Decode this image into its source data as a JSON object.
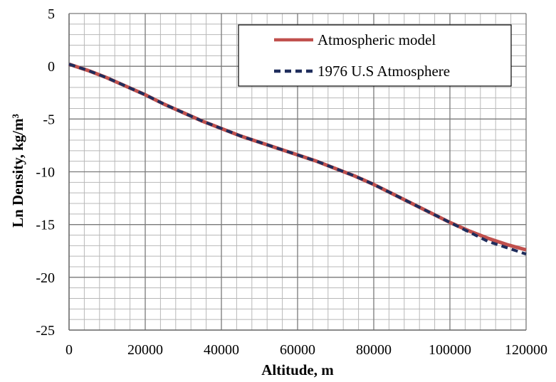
{
  "chart_data": {
    "type": "line",
    "title": "",
    "xlabel": "Altitude, m",
    "ylabel": "Ln Density, kg/m³",
    "xlim": [
      0,
      120000
    ],
    "ylim": [
      -25,
      5
    ],
    "x_major_step": 20000,
    "x_minor_step": 4000,
    "y_major_step": 5,
    "y_minor_step": 1,
    "x_tick_labels": [
      "0",
      "20000",
      "40000",
      "60000",
      "80000",
      "100000",
      "120000"
    ],
    "y_tick_labels": [
      "5",
      "0",
      "-5",
      "-10",
      "-15",
      "-20",
      "-25"
    ],
    "grid": true,
    "legend_position": "top-right",
    "series": [
      {
        "name": "Atmospheric model",
        "color": "#c0504d",
        "style": "solid",
        "x": [
          0,
          5000,
          10000,
          15000,
          20000,
          25000,
          30000,
          35000,
          40000,
          45000,
          50000,
          55000,
          60000,
          65000,
          70000,
          75000,
          80000,
          85000,
          90000,
          95000,
          100000,
          105000,
          110000,
          115000,
          120000
        ],
        "y": [
          0.2,
          -0.4,
          -1.1,
          -1.9,
          -2.7,
          -3.6,
          -4.4,
          -5.2,
          -5.9,
          -6.6,
          -7.2,
          -7.8,
          -8.4,
          -9.0,
          -9.7,
          -10.4,
          -11.2,
          -12.1,
          -13.0,
          -13.9,
          -14.8,
          -15.6,
          -16.3,
          -16.9,
          -17.4
        ]
      },
      {
        "name": "1976 U.S Atmosphere",
        "color": "#1f2d5c",
        "style": "dashed",
        "x": [
          0,
          5000,
          10000,
          15000,
          20000,
          25000,
          30000,
          35000,
          40000,
          45000,
          50000,
          55000,
          60000,
          65000,
          70000,
          75000,
          80000,
          85000,
          90000,
          95000,
          100000,
          105000,
          110000,
          115000,
          120000
        ],
        "y": [
          0.2,
          -0.4,
          -1.1,
          -1.9,
          -2.7,
          -3.6,
          -4.4,
          -5.2,
          -5.9,
          -6.6,
          -7.2,
          -7.8,
          -8.4,
          -9.0,
          -9.7,
          -10.4,
          -11.2,
          -12.1,
          -13.0,
          -13.9,
          -14.8,
          -15.7,
          -16.6,
          -17.2,
          -17.8
        ]
      }
    ]
  }
}
